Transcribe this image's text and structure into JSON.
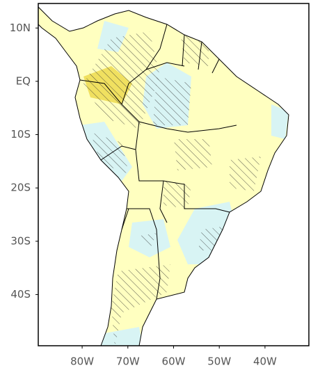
{
  "map": {
    "lat_range": [
      -49.6,
      14.6
    ],
    "lon_range": [
      -89.6,
      -30.4
    ],
    "lat_ticks": [
      {
        "value": 10,
        "label": "10N"
      },
      {
        "value": 0,
        "label": "EQ"
      },
      {
        "value": -10,
        "label": "10S"
      },
      {
        "value": -20,
        "label": "20S"
      },
      {
        "value": -30,
        "label": "30S"
      },
      {
        "value": -40,
        "label": "40S"
      }
    ],
    "lon_ticks": [
      {
        "value": -80,
        "label": "80W"
      },
      {
        "value": -70,
        "label": "70W"
      },
      {
        "value": -60,
        "label": "60W"
      },
      {
        "value": -50,
        "label": "50W"
      },
      {
        "value": -40,
        "label": "40W"
      }
    ]
  }
}
